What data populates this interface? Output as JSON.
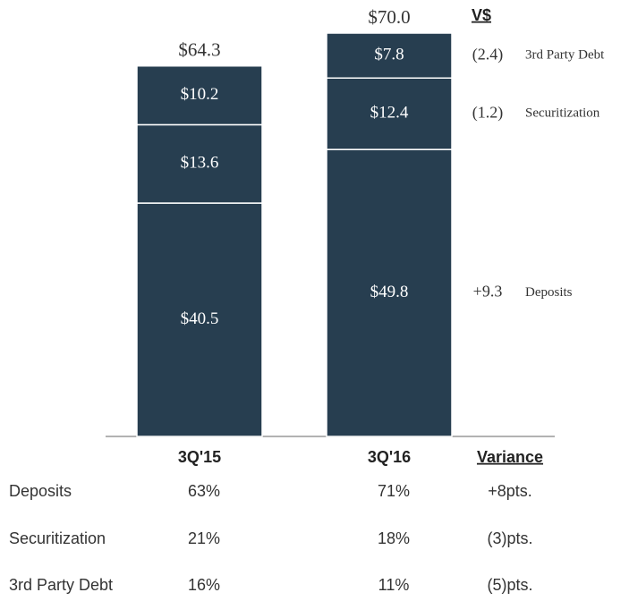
{
  "chart_data": {
    "type": "stacked_bar",
    "categories": [
      "3Q'15",
      "3Q'16"
    ],
    "series": [
      {
        "name": "Deposits",
        "color": "#273e50",
        "values": [
          40.5,
          49.8
        ],
        "value_labels": [
          "$40.5",
          "$49.8"
        ],
        "variance_label": "+9.3"
      },
      {
        "name": "Securitization",
        "color": "#273e50",
        "values": [
          13.6,
          12.4
        ],
        "value_labels": [
          "$13.6",
          "$12.4"
        ],
        "variance_label": "(1.2)"
      },
      {
        "name": "3rd Party Debt",
        "color": "#273e50",
        "values": [
          10.2,
          7.8
        ],
        "value_labels": [
          "$10.2",
          "$7.8"
        ],
        "variance_label": "(2.4)"
      }
    ],
    "totals": [
      64.3,
      70.0
    ],
    "total_labels": [
      "$64.3",
      "$70.0"
    ],
    "variance_header": "V$"
  },
  "table": {
    "variance_header": "Variance",
    "rows": [
      {
        "label": "Deposits",
        "values": [
          "63%",
          "71%"
        ],
        "variance": "+8pts."
      },
      {
        "label": "Securitization",
        "values": [
          "21%",
          "18%"
        ],
        "variance": "(3)pts."
      },
      {
        "label": "3rd Party Debt",
        "values": [
          "16%",
          "11%"
        ],
        "variance": "(5)pts."
      }
    ]
  }
}
